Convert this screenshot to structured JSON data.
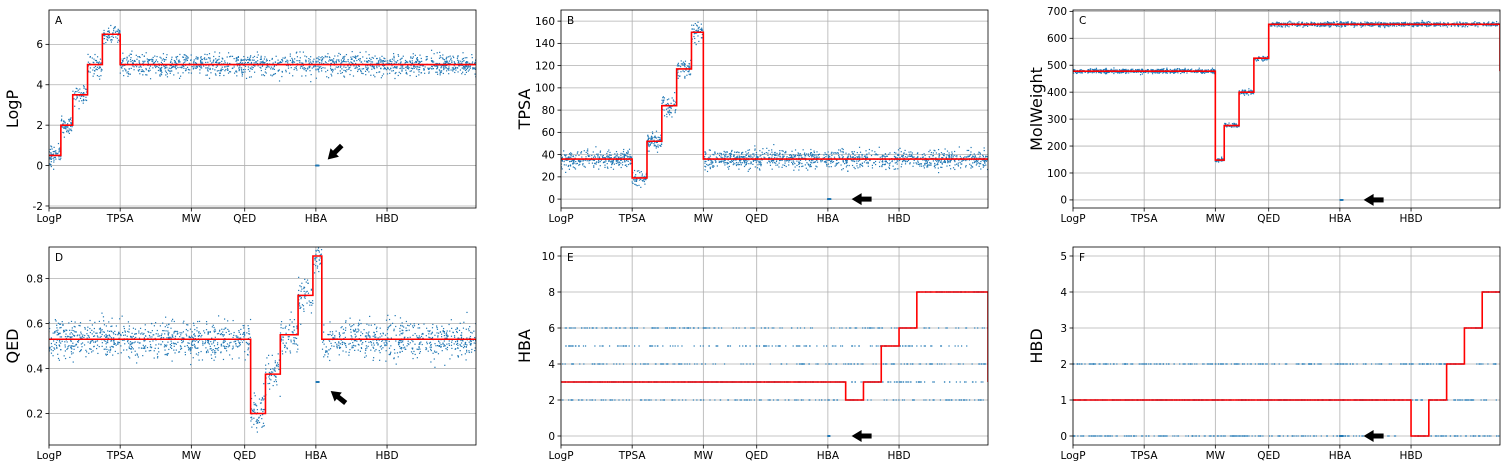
{
  "chart_data": [
    {
      "type": "scatter",
      "panel_label": "A",
      "ylabel": "LogP",
      "xlabel": "",
      "x_tick_labels": [
        "LogP",
        "TPSA",
        "MW",
        "QED",
        "HBA",
        "HBD"
      ],
      "x_tick_positions": [
        0,
        12,
        24,
        33,
        45,
        57
      ],
      "xlim": [
        0,
        72
      ],
      "ylim": [
        -2.1,
        7.7
      ],
      "yticks": [
        -2,
        0,
        2,
        4,
        6
      ],
      "grid": true,
      "baseline": 5.0,
      "scatter_spread": 0.45,
      "step_line": {
        "x": [
          0,
          2,
          4,
          6.5,
          9,
          12,
          72
        ],
        "y": [
          0.5,
          2.0,
          3.5,
          5.0,
          6.5,
          5.0,
          5.0
        ]
      },
      "anomaly_cluster": {
        "x": [
          45,
          45.5
        ],
        "y": 0.0
      },
      "arrow": {
        "x": 47,
        "y": 0.3,
        "direction": "down-left"
      },
      "series": [
        {
          "name": "",
          "color": "#1f77b4",
          "kind": "points"
        },
        {
          "name": "",
          "color": "#ff0000",
          "kind": "step"
        }
      ]
    },
    {
      "type": "scatter",
      "panel_label": "B",
      "ylabel": "TPSA",
      "xlabel": "",
      "x_tick_labels": [
        "LogP",
        "TPSA",
        "MW",
        "QED",
        "HBA",
        "HBD"
      ],
      "x_tick_positions": [
        0,
        12,
        24,
        33,
        45,
        57
      ],
      "xlim": [
        0,
        72
      ],
      "ylim": [
        -8,
        170
      ],
      "yticks": [
        0,
        20,
        40,
        60,
        80,
        100,
        120,
        140,
        160
      ],
      "grid": true,
      "baseline": 36,
      "scatter_spread": 7,
      "step_line": {
        "x": [
          0,
          12,
          14.5,
          17,
          19.5,
          22,
          24,
          72
        ],
        "y": [
          36,
          19,
          52,
          84,
          117,
          150,
          36,
          36
        ]
      },
      "anomaly_cluster": {
        "x": [
          45,
          45.5
        ],
        "y": 0
      },
      "arrow": {
        "x": 49,
        "y": 0,
        "direction": "left"
      },
      "series": [
        {
          "name": "",
          "color": "#1f77b4",
          "kind": "points"
        },
        {
          "name": "",
          "color": "#ff0000",
          "kind": "step"
        }
      ]
    },
    {
      "type": "scatter",
      "panel_label": "C",
      "ylabel": "MolWeight",
      "xlabel": "",
      "x_tick_labels": [
        "LogP",
        "TPSA",
        "MW",
        "QED",
        "HBA",
        "HBD"
      ],
      "x_tick_positions": [
        0,
        12,
        24,
        33,
        45,
        57
      ],
      "xlim": [
        0,
        72
      ],
      "ylim": [
        -30,
        705
      ],
      "yticks": [
        0,
        100,
        200,
        300,
        400,
        500,
        600,
        700
      ],
      "grid": true,
      "baseline": 478,
      "scatter_spread": 7,
      "step_line": {
        "x": [
          0,
          24,
          25.5,
          28,
          30.5,
          33,
          72
        ],
        "y": [
          478,
          148,
          276,
          400,
          526,
          652,
          478
        ]
      },
      "anomaly_cluster": {
        "x": [
          45,
          45.5
        ],
        "y": 0
      },
      "arrow": {
        "x": 49,
        "y": 0,
        "direction": "left"
      },
      "series": [
        {
          "name": "",
          "color": "#1f77b4",
          "kind": "points"
        },
        {
          "name": "",
          "color": "#ff0000",
          "kind": "step"
        }
      ]
    },
    {
      "type": "scatter",
      "panel_label": "D",
      "ylabel": "QED",
      "xlabel": "",
      "x_tick_labels": [
        "LogP",
        "TPSA",
        "MW",
        "QED",
        "HBA",
        "HBD"
      ],
      "x_tick_positions": [
        0,
        12,
        24,
        33,
        45,
        57
      ],
      "xlim": [
        0,
        72
      ],
      "ylim": [
        0.06,
        0.94
      ],
      "yticks": [
        0.2,
        0.4,
        0.6,
        0.8
      ],
      "grid": true,
      "baseline": 0.53,
      "scatter_spread": 0.07,
      "step_line": {
        "x": [
          0,
          34,
          36.5,
          39,
          42,
          44.5,
          46,
          72
        ],
        "y": [
          0.53,
          0.2,
          0.375,
          0.55,
          0.725,
          0.9,
          0.53,
          0.53
        ]
      },
      "anomaly_cluster": {
        "x": [
          45,
          45.5
        ],
        "y": 0.34
      },
      "arrow": {
        "x": 47.5,
        "y": 0.3,
        "direction": "up-left"
      },
      "series": [
        {
          "name": "",
          "color": "#1f77b4",
          "kind": "points"
        },
        {
          "name": "",
          "color": "#ff0000",
          "kind": "step"
        }
      ]
    },
    {
      "type": "scatter",
      "panel_label": "E",
      "ylabel": "HBA",
      "xlabel": "",
      "x_tick_labels": [
        "LogP",
        "TPSA",
        "MW",
        "QED",
        "HBA",
        "HBD"
      ],
      "x_tick_positions": [
        0,
        12,
        24,
        33,
        45,
        57
      ],
      "xlim": [
        0,
        72
      ],
      "ylim": [
        -0.5,
        10.5
      ],
      "yticks": [
        0,
        2,
        4,
        6,
        8,
        10
      ],
      "grid": true,
      "baseline": 3,
      "scatter_levels": [
        2,
        3,
        4,
        5,
        6
      ],
      "step_line": {
        "x": [
          0,
          48,
          51,
          54,
          57,
          60,
          72
        ],
        "y": [
          3,
          2,
          3,
          5,
          6,
          8,
          3
        ]
      },
      "anomaly_cluster": {
        "x": [
          45,
          45.5
        ],
        "y": 0
      },
      "arrow": {
        "x": 49,
        "y": 0,
        "direction": "left"
      },
      "series": [
        {
          "name": "",
          "color": "#1f77b4",
          "kind": "points"
        },
        {
          "name": "",
          "color": "#ff0000",
          "kind": "step"
        }
      ]
    },
    {
      "type": "scatter",
      "panel_label": "F",
      "ylabel": "HBD",
      "xlabel": "",
      "x_tick_labels": [
        "LogP",
        "TPSA",
        "MW",
        "QED",
        "HBA",
        "HBD"
      ],
      "x_tick_positions": [
        0,
        12,
        24,
        33,
        45,
        57
      ],
      "xlim": [
        0,
        72
      ],
      "ylim": [
        -0.25,
        5.25
      ],
      "yticks": [
        0,
        1,
        2,
        3,
        4,
        5
      ],
      "grid": true,
      "baseline": 1,
      "scatter_levels": [
        0,
        1,
        2
      ],
      "step_line": {
        "x": [
          0,
          57,
          60,
          63,
          66,
          69,
          72
        ],
        "y": [
          1,
          0,
          1,
          2,
          3,
          4,
          4
        ]
      },
      "anomaly_cluster": {
        "x": [
          45,
          45.5
        ],
        "y": 0
      },
      "arrow": {
        "x": 49,
        "y": 0,
        "direction": "left"
      },
      "series": [
        {
          "name": "",
          "color": "#1f77b4",
          "kind": "points"
        },
        {
          "name": "",
          "color": "#ff0000",
          "kind": "step"
        }
      ]
    }
  ]
}
